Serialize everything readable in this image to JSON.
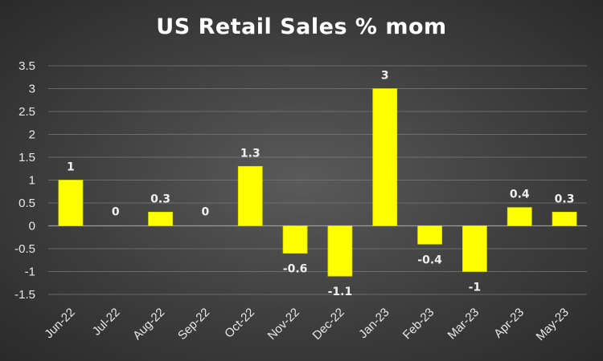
{
  "chart_data": {
    "type": "bar",
    "title": "US Retail Sales % mom",
    "xlabel": "",
    "ylabel": "",
    "categories": [
      "Jun-22",
      "Jul-22",
      "Aug-22",
      "Sep-22",
      "Oct-22",
      "Nov-22",
      "Dec-22",
      "Jan-23",
      "Feb-23",
      "Mar-23",
      "Apr-23",
      "May-23"
    ],
    "values": [
      1,
      0,
      0.3,
      0,
      1.3,
      -0.6,
      -1.1,
      3,
      -0.4,
      -1,
      0.4,
      0.3
    ],
    "data_labels": [
      "1",
      "0",
      "0.3",
      "0",
      "1.3",
      "-0.6",
      "-1.1",
      "3",
      "-0.4",
      "-1",
      "0.4",
      "0.3"
    ],
    "ylim": [
      -1.5,
      3.5
    ],
    "yticks": [
      3.5,
      3,
      2.5,
      2,
      1.5,
      1,
      0.5,
      0,
      -0.5,
      -1,
      -1.5
    ],
    "ytick_labels": [
      "3.5",
      "3",
      "2.5",
      "2",
      "1.5",
      "1",
      "0.5",
      "0",
      "-0.5",
      "-1",
      "-1.5"
    ],
    "grid": true,
    "legend": "none",
    "colors": {
      "bar": "#ffff00",
      "bar_outline": "#d8d800",
      "grid": "#7a7a7a",
      "text": "#ffffff"
    }
  }
}
